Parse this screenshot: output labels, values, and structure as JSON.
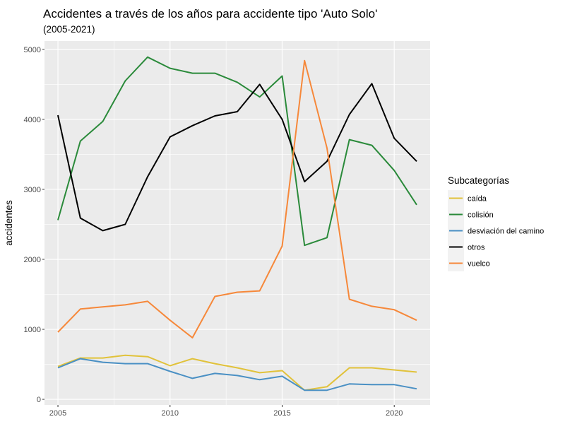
{
  "chart_data": {
    "type": "line",
    "title": "Accidentes a través de los años para accidente tipo 'Auto Solo'",
    "subtitle": "(2005-2021)",
    "xlabel": "",
    "ylabel": "accidentes",
    "x": [
      2005,
      2006,
      2007,
      2008,
      2009,
      2010,
      2011,
      2012,
      2013,
      2014,
      2015,
      2016,
      2017,
      2018,
      2019,
      2020,
      2021
    ],
    "xlim": [
      2004.4,
      2021.6
    ],
    "ylim": [
      -80,
      5120
    ],
    "x_ticks": [
      2005,
      2010,
      2015,
      2020
    ],
    "x_tick_labels": [
      "2005",
      "2010",
      "2015",
      "2020"
    ],
    "y_ticks": [
      0,
      1000,
      2000,
      3000,
      4000,
      5000
    ],
    "y_tick_labels": [
      "0",
      "1000",
      "2000",
      "3000",
      "4000",
      "5000"
    ],
    "grid": true,
    "legend": {
      "title": "Subcategorías",
      "position": "right"
    },
    "series": [
      {
        "name": "caída",
        "color": "#E1C23A",
        "values": [
          470,
          590,
          590,
          630,
          610,
          480,
          580,
          510,
          450,
          380,
          410,
          130,
          180,
          450,
          450,
          420,
          390
        ]
      },
      {
        "name": "colisión",
        "color": "#2A8A3A",
        "values": [
          2560,
          3690,
          3970,
          4550,
          4890,
          4730,
          4660,
          4660,
          4530,
          4320,
          4620,
          2200,
          2310,
          3710,
          3630,
          3270,
          2780
        ]
      },
      {
        "name": "desviación del camino",
        "color": "#4A90C4",
        "values": [
          450,
          580,
          530,
          510,
          510,
          400,
          300,
          370,
          340,
          280,
          330,
          130,
          130,
          220,
          210,
          210,
          150
        ]
      },
      {
        "name": "otros",
        "color": "#000000",
        "values": [
          4060,
          2590,
          2410,
          2500,
          3180,
          3750,
          3910,
          4050,
          4110,
          4500,
          4000,
          3110,
          3400,
          4070,
          4510,
          3730,
          3400
        ]
      },
      {
        "name": "vuelco",
        "color": "#F6883A",
        "values": [
          960,
          1290,
          1320,
          1350,
          1400,
          1130,
          880,
          1470,
          1530,
          1550,
          2190,
          4840,
          3590,
          1430,
          1330,
          1280,
          1130
        ]
      }
    ]
  }
}
